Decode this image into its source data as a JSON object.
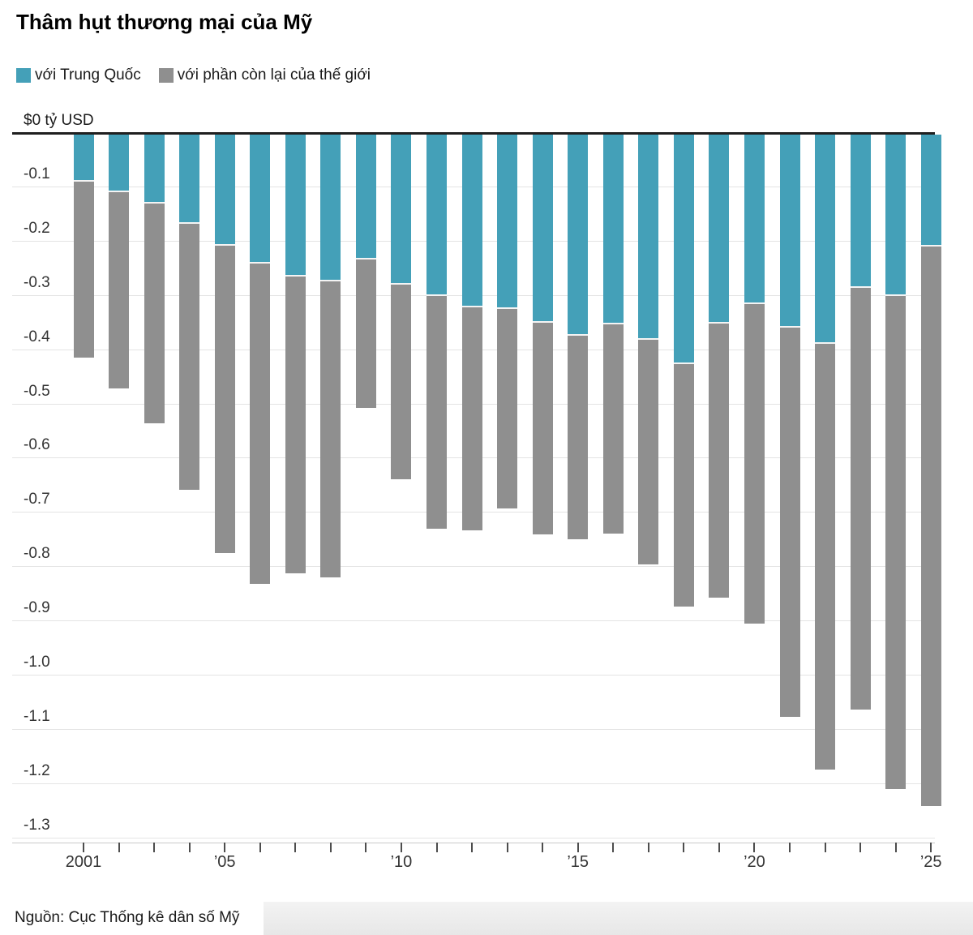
{
  "title": "Thâm hụt thương mại của Mỹ",
  "legend": [
    {
      "label": "với Trung Quốc",
      "color": "#44a0b8"
    },
    {
      "label": "với phần còn lại của thế giới",
      "color": "#8f8f8f"
    }
  ],
  "zero_axis_label": "$0 tỷ USD",
  "source": "Nguồn: Cục Thống kê dân số Mỹ",
  "colors": {
    "china": "#44a0b8",
    "rest_of_world": "#8f8f8f",
    "gridline": "#e4e4e4",
    "zero_line": "#1f1f1f",
    "tick": "#4d4d4d"
  },
  "chart_data": {
    "type": "bar",
    "stacked": true,
    "title": "Thâm hụt thương mại của Mỹ",
    "ylabel": "$0 tỷ USD",
    "xlabel": "",
    "ylim": [
      -1.3,
      0
    ],
    "grid": true,
    "legend_position": "top-left",
    "categories": [
      2001,
      2002,
      2003,
      2004,
      2005,
      2006,
      2007,
      2008,
      2009,
      2010,
      2011,
      2012,
      2013,
      2014,
      2015,
      2016,
      2017,
      2018,
      2019,
      2020,
      2021,
      2022,
      2023,
      2024,
      2025
    ],
    "series": [
      {
        "name": "với Trung Quốc",
        "color": "#44a0b8",
        "values": [
          -0.083,
          -0.103,
          -0.124,
          -0.162,
          -0.202,
          -0.234,
          -0.258,
          -0.268,
          -0.227,
          -0.273,
          -0.295,
          -0.315,
          -0.318,
          -0.344,
          -0.367,
          -0.347,
          -0.375,
          -0.42,
          -0.345,
          -0.31,
          -0.353,
          -0.382,
          -0.279,
          -0.295,
          -0.203
        ]
      },
      {
        "name": "với phần còn lại của thế giới",
        "color": "#8f8f8f",
        "values": [
          -0.328,
          -0.365,
          -0.408,
          -0.492,
          -0.57,
          -0.594,
          -0.55,
          -0.548,
          -0.276,
          -0.362,
          -0.432,
          -0.415,
          -0.371,
          -0.393,
          -0.379,
          -0.388,
          -0.417,
          -0.45,
          -0.508,
          -0.592,
          -0.72,
          -0.788,
          -0.781,
          -0.912,
          -1.034
        ]
      }
    ],
    "totals": [
      -0.411,
      -0.468,
      -0.532,
      -0.654,
      -0.772,
      -0.828,
      -0.808,
      -0.816,
      -0.503,
      -0.635,
      -0.727,
      -0.73,
      -0.689,
      -0.737,
      -0.746,
      -0.735,
      -0.792,
      -0.87,
      -0.853,
      -0.902,
      -1.073,
      -1.17,
      -1.06,
      -1.207,
      -1.237
    ],
    "y_tick_labels": [
      "-0.1",
      "-0.2",
      "-0.3",
      "-0.4",
      "-0.5",
      "-0.6",
      "-0.7",
      "-0.8",
      "-0.9",
      "-1.0",
      "-1.1",
      "-1.2",
      "-1.3"
    ],
    "x_tick_labels": {
      "0": "2001",
      "4": "’05",
      "9": "’10",
      "14": "’15",
      "19": "’20",
      "24": "’25"
    }
  }
}
